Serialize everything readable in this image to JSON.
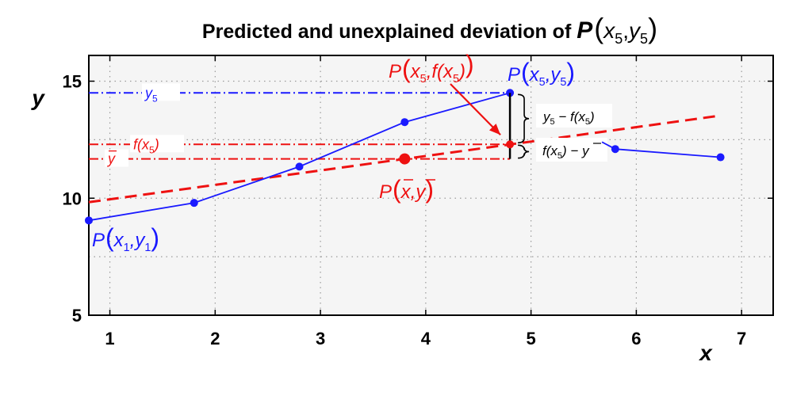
{
  "chart_data": {
    "type": "line",
    "title": "Predicted and unexplained deviation of",
    "title_math": {
      "P": "P",
      "open": "(",
      "x": "x",
      "x_sub": "5",
      "comma": ",",
      "y": "y",
      "y_sub": "5",
      "close": ")"
    },
    "xlabel": "x",
    "ylabel": "y",
    "xlim": [
      0.8,
      7.3
    ],
    "ylim": [
      5,
      16.1
    ],
    "x_ticks": [
      1,
      2,
      3,
      4,
      5,
      6,
      7
    ],
    "y_ticks": [
      5,
      10,
      15
    ],
    "grid": true,
    "series": [
      {
        "color": "#1a1aff",
        "x": [
          0.8,
          1.8,
          2.8,
          3.8,
          4.8,
          5.8,
          6.8
        ],
        "y": [
          9.05,
          9.8,
          11.35,
          13.25,
          14.5,
          12.1,
          11.75
        ]
      }
    ],
    "regression_line": {
      "color": "#ee1111",
      "x": [
        0.8,
        6.8
      ],
      "y": [
        9.83,
        13.53
      ]
    },
    "mean_point": {
      "color": "#ee1111",
      "x": 3.8,
      "y": 11.68
    },
    "fitted_point": {
      "color": "#ee1111",
      "x": 4.8,
      "y": 12.3
    },
    "reference_lines": [
      {
        "y": 14.5,
        "color": "#1a1aff",
        "label": {
          "base": "y",
          "sub": "5"
        }
      },
      {
        "y": 12.3,
        "color": "#ee1111",
        "label": {
          "base": "f(x",
          "sub": "5",
          "tail": ")"
        }
      },
      {
        "y": 11.68,
        "color": "#ee1111",
        "label": {
          "base": "y",
          "bar": true
        }
      }
    ],
    "annotations": {
      "p1": {
        "P": "P",
        "x": "x",
        "x_sub": "1",
        "y": "y",
        "y_sub": "1",
        "color": "#1a1aff"
      },
      "p5": {
        "P": "P",
        "x": "x",
        "x_sub": "5",
        "y": "y",
        "y_sub": "5",
        "color": "#1a1aff"
      },
      "pf": {
        "P": "P",
        "x": "x",
        "x_sub": "5",
        "f": "f(x",
        "f_sub": "5",
        "f_tail": ")",
        "color": "#ee1111"
      },
      "pmean": {
        "P": "P",
        "x": "x",
        "y": "y",
        "color": "#ee1111"
      },
      "unexplained": {
        "y": "y",
        "y_sub": "5",
        "op": "−",
        "f": "f(x",
        "f_sub": "5",
        "f_tail": ")"
      },
      "explained": {
        "f": "f(x",
        "f_sub": "5",
        "f_tail": ")",
        "op": "−",
        "y": "y"
      }
    }
  }
}
